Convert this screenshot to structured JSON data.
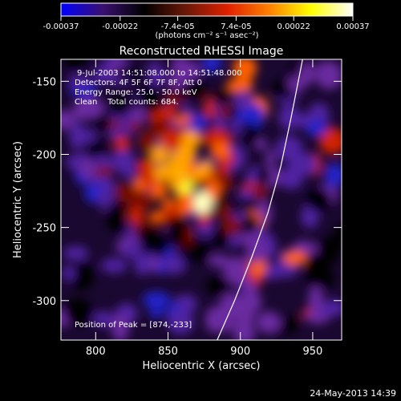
{
  "chart_data": {
    "type": "heatmap",
    "title": "Reconstructed RHESSI Image",
    "xlabel": "Heliocentric X (arcsec)",
    "ylabel": "Heliocentric Y (arcsec)",
    "xlim": [
      776,
      970
    ],
    "ylim": [
      -327,
      -135
    ],
    "x_ticks": [
      800,
      850,
      900,
      950
    ],
    "y_ticks": [
      -150,
      -200,
      -250,
      -300
    ],
    "colorbar": {
      "range": [
        -0.00037,
        0.00037
      ],
      "tick_values": [
        -0.00037,
        -0.00022,
        -7.4e-05,
        7.4e-05,
        0.00022,
        0.00037
      ],
      "tick_labels": [
        "-0.00037",
        "-0.00022",
        "-7.4e-05",
        "7.4e-05",
        "0.00022",
        "0.00037"
      ],
      "unit_label": "(photons cm⁻² s⁻¹ asec⁻²)",
      "colors": [
        "#0000ff",
        "#3a1070",
        "#000000",
        "#6a1808",
        "#e02000",
        "#ff8000",
        "#ffff00",
        "#ffffff"
      ]
    },
    "info_lines": [
      "9-Jul-2003 14:51:08.000 to 14:51:48.000",
      "Detectors: 4F 5F 6F 7F 8F, Att 0",
      "Energy Range: 25.0 - 50.0 keV",
      "Clean    Total counts: 684."
    ],
    "peak_label": "Position of Peak = [874,-233]",
    "peak": {
      "x": 874,
      "y": -233
    },
    "limb_curve": [
      {
        "x": 884,
        "y": -327
      },
      {
        "x": 896,
        "y": -300
      },
      {
        "x": 908,
        "y": -270
      },
      {
        "x": 919,
        "y": -240
      },
      {
        "x": 928,
        "y": -208
      },
      {
        "x": 935,
        "y": -175
      },
      {
        "x": 941,
        "y": -145
      },
      {
        "x": 943,
        "y": -135
      }
    ],
    "grid": false,
    "timestamp": "24-May-2013 14:39"
  }
}
